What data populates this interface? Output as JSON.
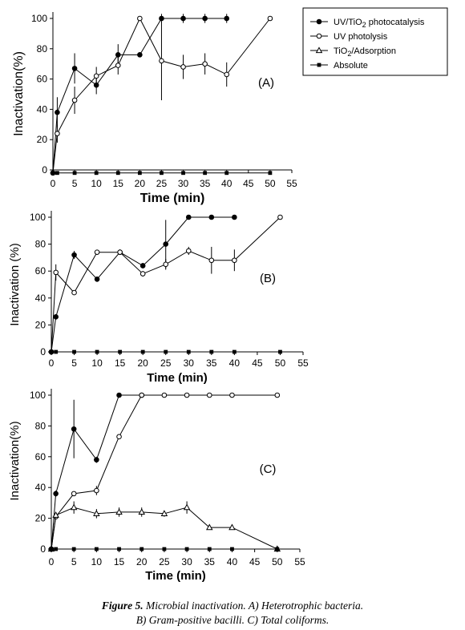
{
  "caption": {
    "label": "Figure 5.",
    "line1": "Microbial inactivation. A) Heterotrophic bacteria.",
    "line2": "B) Gram-positive bacilli. C) Total coliforms."
  },
  "legend": {
    "entries": [
      {
        "marker": "filled-circle",
        "text_main": "UV/TiO",
        "text_sub": "2",
        "text_tail": " photocatalysis"
      },
      {
        "marker": "open-circle",
        "text_main": "UV  photolysis",
        "text_sub": "",
        "text_tail": ""
      },
      {
        "marker": "open-triangle",
        "text_main": "TiO",
        "text_sub": "2",
        "text_tail": "/Adsorption"
      },
      {
        "marker": "filled-square",
        "text_main": "Absolute",
        "text_sub": "",
        "text_tail": ""
      }
    ]
  },
  "chart_data": [
    {
      "type": "line",
      "panel_label": "(A)",
      "xlabel": "Time  (min)",
      "ylabel": "Inactivation(%)",
      "xlim": [
        0,
        55
      ],
      "ylim": [
        0,
        100
      ],
      "xticks": [
        0,
        5,
        10,
        15,
        20,
        25,
        30,
        35,
        40,
        45,
        50,
        55
      ],
      "yticks": [
        0,
        20,
        40,
        60,
        80,
        100
      ],
      "series": [
        {
          "name": "UV/TiO2 photocatalysis",
          "marker": "filled-circle",
          "x": [
            0,
            1,
            5,
            10,
            15,
            20,
            25,
            30,
            35,
            40
          ],
          "y": [
            -2,
            38,
            67,
            56,
            76,
            76,
            100,
            100,
            100,
            100
          ],
          "err": [
            0,
            10,
            10,
            6,
            7,
            0,
            3,
            3,
            3,
            3
          ]
        },
        {
          "name": "UV  photolysis",
          "marker": "open-circle",
          "x": [
            0,
            1,
            5,
            10,
            15,
            20,
            25,
            30,
            35,
            40,
            50
          ],
          "y": [
            -2,
            24,
            46,
            62,
            69,
            100,
            72,
            68,
            70,
            63,
            100
          ],
          "err": [
            0,
            6,
            9,
            6,
            6,
            0,
            26,
            8,
            7,
            8,
            0
          ]
        },
        {
          "name": "Absolute",
          "marker": "filled-square",
          "x": [
            0,
            1,
            5,
            10,
            15,
            20,
            25,
            30,
            35,
            40,
            50
          ],
          "y": [
            -2,
            -2,
            -2,
            -2,
            -2,
            -2,
            -2,
            -2,
            -2,
            -2,
            -2
          ]
        }
      ]
    },
    {
      "type": "line",
      "panel_label": "(B)",
      "xlabel": "Time  (min)",
      "ylabel": "Inactivation (%)",
      "xlim": [
        0,
        55
      ],
      "ylim": [
        0,
        100
      ],
      "xticks": [
        0,
        5,
        10,
        15,
        20,
        25,
        30,
        35,
        40,
        45,
        50,
        55
      ],
      "yticks": [
        0,
        20,
        40,
        60,
        80,
        100
      ],
      "series": [
        {
          "name": "UV/TiO2 photocatalysis",
          "marker": "filled-circle",
          "x": [
            0,
            1,
            5,
            10,
            15,
            20,
            25,
            30,
            35,
            40
          ],
          "y": [
            0,
            26,
            72,
            54,
            74,
            64,
            80,
            100,
            100,
            100
          ],
          "err": [
            0,
            2,
            3,
            2,
            2,
            2,
            18,
            0,
            0,
            0
          ]
        },
        {
          "name": "UV  photolysis",
          "marker": "open-circle",
          "x": [
            0,
            1,
            5,
            10,
            15,
            20,
            25,
            30,
            35,
            40,
            50
          ],
          "y": [
            0,
            59,
            44,
            74,
            74,
            58,
            65,
            75,
            68,
            68,
            100
          ],
          "err": [
            0,
            6,
            0,
            0,
            2,
            2,
            4,
            3,
            10,
            8,
            0
          ]
        },
        {
          "name": "Absolute",
          "marker": "filled-square",
          "x": [
            0,
            1,
            5,
            10,
            15,
            20,
            25,
            30,
            35,
            40,
            50
          ],
          "y": [
            0,
            0,
            0,
            0,
            0,
            0,
            0,
            0,
            0,
            0,
            0
          ]
        }
      ]
    },
    {
      "type": "line",
      "panel_label": "(C)",
      "xlabel": "Time  (min)",
      "ylabel": "Inactivation(%)",
      "xlim": [
        0,
        55
      ],
      "ylim": [
        0,
        100
      ],
      "xticks": [
        0,
        5,
        10,
        15,
        20,
        25,
        30,
        35,
        40,
        45,
        50,
        55
      ],
      "yticks": [
        0,
        20,
        40,
        60,
        80,
        100
      ],
      "series": [
        {
          "name": "UV/TiO2 photocatalysis",
          "marker": "filled-circle",
          "x": [
            0,
            1,
            5,
            10,
            15,
            20
          ],
          "y": [
            0,
            36,
            78,
            58,
            100,
            100
          ],
          "err": [
            0,
            2,
            19,
            2,
            0,
            0
          ]
        },
        {
          "name": "UV  photolysis",
          "marker": "open-circle",
          "x": [
            0,
            1,
            5,
            10,
            15,
            20,
            25,
            30,
            35,
            40,
            50
          ],
          "y": [
            0,
            21,
            36,
            38,
            73,
            100,
            100,
            100,
            100,
            100,
            100
          ],
          "err": [
            0,
            0,
            0,
            3,
            0,
            0,
            0,
            0,
            0,
            0,
            0
          ]
        },
        {
          "name": "TiO2/Adsorption",
          "marker": "open-triangle",
          "x": [
            0,
            1,
            5,
            10,
            15,
            20,
            25,
            30,
            35,
            40,
            50
          ],
          "y": [
            0,
            22,
            27,
            23,
            24,
            24,
            23,
            27,
            14,
            14,
            0
          ],
          "err": [
            0,
            0,
            4,
            3,
            3,
            3,
            2,
            4,
            0,
            0,
            0
          ]
        },
        {
          "name": "Absolute",
          "marker": "filled-square",
          "x": [
            0,
            1,
            5,
            10,
            15,
            20,
            25,
            30,
            35,
            40,
            50
          ],
          "y": [
            0,
            0,
            0,
            0,
            0,
            0,
            0,
            0,
            0,
            0,
            0
          ]
        }
      ]
    }
  ]
}
